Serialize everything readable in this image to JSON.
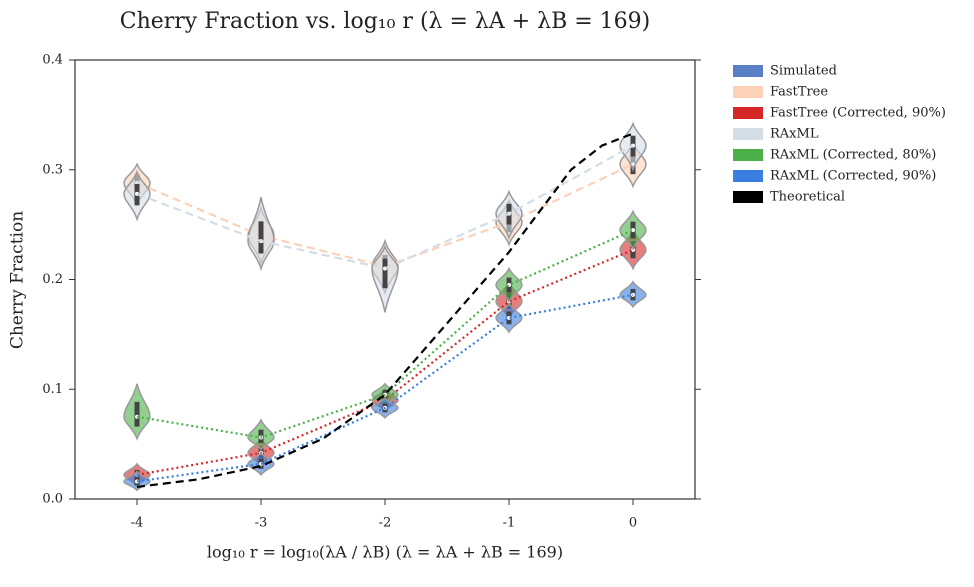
{
  "chart_data": {
    "type": "violin-line",
    "title": "Cherry Fraction vs. log₁₀ r (λ = λA + λB = 169)",
    "xlabel": "log₁₀ r = log₁₀(λA / λB) (λ = λA + λB = 169)",
    "ylabel": "Cherry Fraction",
    "xlim": [
      -4.5,
      0.5
    ],
    "xticks": [
      -4,
      -3,
      -2,
      -1,
      0
    ],
    "ylim": [
      0,
      0.4
    ],
    "yticks": [
      {
        "value": 0,
        "label": "0.0"
      },
      0.1,
      0.2,
      0.3,
      0.4
    ],
    "x": [
      -4,
      -3,
      -2,
      -1,
      0
    ],
    "legend": "outside upper right",
    "series": [
      {
        "name": "Simulated",
        "color": "#5a7fc4",
        "values": []
      },
      {
        "name": "FastTree",
        "color": "#fdd0b8",
        "dash": "dashed",
        "values": [
          0.288,
          0.24,
          0.212,
          0.252,
          0.305
        ],
        "lows": [
          0.268,
          0.215,
          0.188,
          0.232,
          0.285
        ],
        "highs": [
          0.305,
          0.265,
          0.235,
          0.272,
          0.325
        ]
      },
      {
        "name": "FastTree (Corrected, 90%)",
        "color": "#d62728",
        "dash": "dotted",
        "values": [
          0.022,
          0.042,
          0.09,
          0.18,
          0.227
        ],
        "lows": [
          0.012,
          0.03,
          0.08,
          0.165,
          0.21
        ],
        "highs": [
          0.032,
          0.055,
          0.1,
          0.198,
          0.245
        ]
      },
      {
        "name": "RAxML",
        "color": "#d3dde6",
        "dash": "dashed",
        "values": [
          0.278,
          0.235,
          0.21,
          0.26,
          0.322
        ],
        "lows": [
          0.255,
          0.21,
          0.17,
          0.238,
          0.3
        ],
        "highs": [
          0.298,
          0.275,
          0.23,
          0.28,
          0.342
        ]
      },
      {
        "name": "RAxML (Corrected, 80%)",
        "color": "#4daf4a",
        "dash": "dotted",
        "values": [
          0.075,
          0.056,
          0.095,
          0.195,
          0.245
        ],
        "lows": [
          0.055,
          0.045,
          0.085,
          0.18,
          0.228
        ],
        "highs": [
          0.105,
          0.072,
          0.105,
          0.21,
          0.262
        ]
      },
      {
        "name": "RAxML (Corrected, 90%)",
        "color": "#3a7fe0",
        "dash": "dotted",
        "values": [
          0.016,
          0.032,
          0.083,
          0.165,
          0.186
        ],
        "lows": [
          0.008,
          0.022,
          0.074,
          0.152,
          0.175
        ],
        "highs": [
          0.025,
          0.042,
          0.092,
          0.178,
          0.198
        ]
      },
      {
        "name": "Theoretical",
        "color": "#000000",
        "dash": "dashed",
        "x": [
          -4,
          -3.5,
          -3,
          -2.5,
          -2,
          -1.5,
          -1,
          -0.5,
          -0.25,
          0
        ],
        "values": [
          0.011,
          0.018,
          0.03,
          0.055,
          0.095,
          0.16,
          0.225,
          0.3,
          0.322,
          0.333
        ]
      }
    ]
  }
}
